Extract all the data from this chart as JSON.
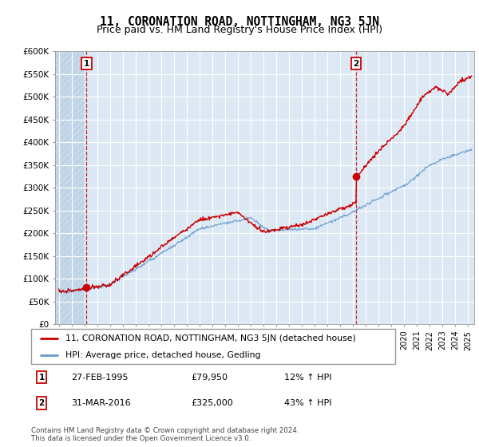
{
  "title": "11, CORONATION ROAD, NOTTINGHAM, NG3 5JN",
  "subtitle": "Price paid vs. HM Land Registry's House Price Index (HPI)",
  "ylim": [
    0,
    600000
  ],
  "yticks": [
    0,
    50000,
    100000,
    150000,
    200000,
    250000,
    300000,
    350000,
    400000,
    450000,
    500000,
    550000,
    600000
  ],
  "xlim_start": 1992.7,
  "xlim_end": 2025.5,
  "sale1_x": 1995.16,
  "sale1_y": 79950,
  "sale2_x": 2016.25,
  "sale2_y": 325000,
  "sale1_label": "27-FEB-1995",
  "sale1_price": "£79,950",
  "sale1_hpi": "12% ↑ HPI",
  "sale2_label": "31-MAR-2016",
  "sale2_price": "£325,000",
  "sale2_hpi": "43% ↑ HPI",
  "line1_color": "#cc0000",
  "line2_color": "#6699cc",
  "bg_color": "#ffffff",
  "plot_bg_color": "#dce9f5",
  "hatch_color": "#c5d8eb",
  "grid_color": "#ffffff",
  "legend_line1": "11, CORONATION ROAD, NOTTINGHAM, NG3 5JN (detached house)",
  "legend_line2": "HPI: Average price, detached house, Gedling",
  "footnote": "Contains HM Land Registry data © Crown copyright and database right 2024.\nThis data is licensed under the Open Government Licence v3.0.",
  "title_fontsize": 10.5,
  "subtitle_fontsize": 9,
  "tick_fontsize": 7.5
}
